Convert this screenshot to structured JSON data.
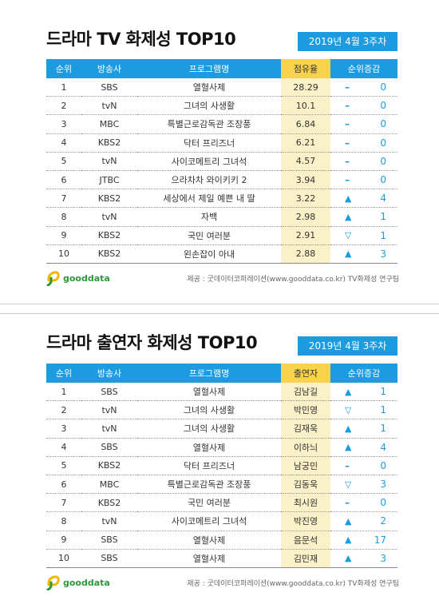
{
  "tv": {
    "title": "드라마 TV 화제성 TOP10",
    "date": "2019년  4월 3주차",
    "headers": [
      "순위",
      "방송사",
      "프로그램명",
      "점유율",
      "순위증감"
    ],
    "rows": [
      {
        "rank": "1",
        "channel": "SBS",
        "program": "열혈사제",
        "value": "28.29",
        "dir": "same",
        "change": "0"
      },
      {
        "rank": "2",
        "channel": "tvN",
        "program": "그녀의 사생활",
        "value": "10.1",
        "dir": "same",
        "change": "0"
      },
      {
        "rank": "3",
        "channel": "MBC",
        "program": "특별근로감독관 조장풍",
        "value": "6.84",
        "dir": "same",
        "change": "0"
      },
      {
        "rank": "4",
        "channel": "KBS2",
        "program": "닥터 프리즈너",
        "value": "6.21",
        "dir": "same",
        "change": "0"
      },
      {
        "rank": "5",
        "channel": "tvN",
        "program": "사이코메트리 그녀석",
        "value": "4.57",
        "dir": "same",
        "change": "0"
      },
      {
        "rank": "6",
        "channel": "JTBC",
        "program": "으라차차 와이키키 2",
        "value": "3.94",
        "dir": "same",
        "change": "0"
      },
      {
        "rank": "7",
        "channel": "KBS2",
        "program": "세상에서 제일 예쁜 내 딸",
        "value": "3.22",
        "dir": "up",
        "change": "4"
      },
      {
        "rank": "8",
        "channel": "tvN",
        "program": "자백",
        "value": "2.98",
        "dir": "up",
        "change": "1"
      },
      {
        "rank": "9",
        "channel": "KBS2",
        "program": "국민 여러분",
        "value": "2.91",
        "dir": "down",
        "change": "1"
      },
      {
        "rank": "10",
        "channel": "KBS2",
        "program": "왼손잡이 아내",
        "value": "2.88",
        "dir": "up",
        "change": "3"
      }
    ],
    "logo": "gooddata",
    "source": "제공 : 굿데이터코퍼레이션(www.gooddata.co.kr) TV화제성 연구팀"
  },
  "cast": {
    "title": "드라마 출연자 화제성 TOP10",
    "date": "2019년  4월 3주차",
    "headers": [
      "순위",
      "방송사",
      "프로그램명",
      "출연자",
      "순위증감"
    ],
    "rows": [
      {
        "rank": "1",
        "channel": "SBS",
        "program": "열혈사제",
        "value": "김남길",
        "dir": "up",
        "change": "1"
      },
      {
        "rank": "2",
        "channel": "tvN",
        "program": "그녀의 사생활",
        "value": "박민영",
        "dir": "down",
        "change": "1"
      },
      {
        "rank": "3",
        "channel": "tvN",
        "program": "그녀의 사생활",
        "value": "김재욱",
        "dir": "up",
        "change": "1"
      },
      {
        "rank": "4",
        "channel": "SBS",
        "program": "열혈사제",
        "value": "이하늬",
        "dir": "up",
        "change": "4"
      },
      {
        "rank": "5",
        "channel": "KBS2",
        "program": "닥터 프리즈너",
        "value": "남궁민",
        "dir": "same",
        "change": "0"
      },
      {
        "rank": "6",
        "channel": "MBC",
        "program": "특별근로감독관 조장풍",
        "value": "김동욱",
        "dir": "down",
        "change": "3"
      },
      {
        "rank": "7",
        "channel": "KBS2",
        "program": "국민 여러분",
        "value": "최시원",
        "dir": "same",
        "change": "0"
      },
      {
        "rank": "8",
        "channel": "tvN",
        "program": "사이코메트리 그녀석",
        "value": "박진영",
        "dir": "up",
        "change": "2"
      },
      {
        "rank": "9",
        "channel": "SBS",
        "program": "열혈사제",
        "value": "음문석",
        "dir": "up",
        "change": "17"
      },
      {
        "rank": "10",
        "channel": "SBS",
        "program": "열혈사제",
        "value": "김민재",
        "dir": "up",
        "change": "3"
      }
    ],
    "logo": "gooddata",
    "source": "제공 : 굿데이터코퍼레이션(www.gooddata.co.kr) TV화제성 연구팀"
  },
  "colors": {
    "accent": "#1d9be0",
    "header_highlight": "#f7d24a",
    "cell_highlight": "#fbf1c8",
    "logo_green": "#2a9a3a",
    "logo_yellow": "#f2b705"
  }
}
